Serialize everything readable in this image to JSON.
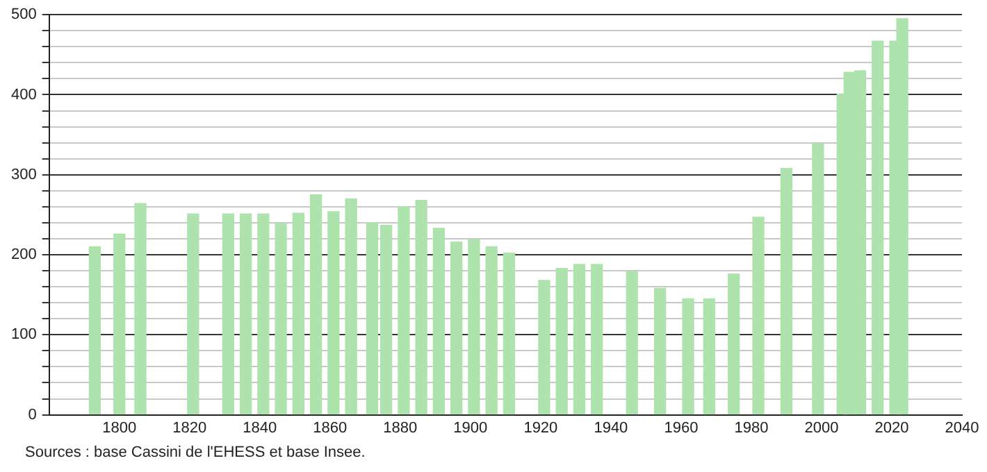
{
  "chart_data": {
    "type": "bar",
    "x": [
      1793,
      1800,
      1806,
      1821,
      1831,
      1836,
      1841,
      1846,
      1851,
      1856,
      1861,
      1866,
      1872,
      1876,
      1881,
      1886,
      1891,
      1896,
      1901,
      1906,
      1911,
      1921,
      1926,
      1931,
      1936,
      1946,
      1954,
      1962,
      1968,
      1975,
      1982,
      1990,
      1999,
      2006,
      2008,
      2011,
      2016,
      2021,
      2023
    ],
    "values": [
      210,
      226,
      264,
      251,
      251,
      251,
      251,
      239,
      252,
      275,
      254,
      270,
      240,
      237,
      260,
      268,
      233,
      216,
      219,
      210,
      202,
      168,
      183,
      188,
      188,
      179,
      158,
      145,
      145,
      176,
      247,
      308,
      339,
      401,
      428,
      430,
      467,
      467,
      495
    ],
    "color": "#aee3ae",
    "xlim": [
      1780,
      2040
    ],
    "xticks": [
      1800,
      1820,
      1840,
      1860,
      1880,
      1900,
      1920,
      1940,
      1960,
      1980,
      2000,
      2020,
      2040
    ],
    "ylim": [
      0,
      500
    ],
    "yticks": [
      0,
      {
        "value": 20,
        "label": null
      },
      {
        "value": 40,
        "label": null
      },
      {
        "value": 60,
        "label": null
      },
      {
        "value": 80,
        "label": null
      },
      100,
      {
        "value": 120,
        "label": null
      },
      {
        "value": 140,
        "label": null
      },
      {
        "value": 160,
        "label": null
      },
      {
        "value": 180,
        "label": null
      },
      200,
      {
        "value": 220,
        "label": null
      },
      {
        "value": 240,
        "label": null
      },
      {
        "value": 260,
        "label": null
      },
      {
        "value": 280,
        "label": null
      },
      300,
      {
        "value": 320,
        "label": null
      },
      {
        "value": 340,
        "label": null
      },
      {
        "value": 360,
        "label": null
      },
      {
        "value": 380,
        "label": null
      },
      400,
      {
        "value": 420,
        "label": null
      },
      {
        "value": 440,
        "label": null
      },
      {
        "value": 460,
        "label": null
      },
      {
        "value": 480,
        "label": null
      },
      500
    ],
    "grid": "y",
    "annotations": [
      "Sources : base Cassini de l'EHESS et base Insee."
    ]
  }
}
